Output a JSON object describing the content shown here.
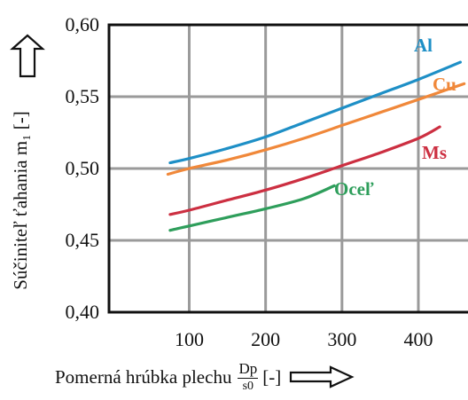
{
  "chart_data": {
    "type": "line",
    "ylabel": "Súčiniteľ ťahania m₁ [-]",
    "xlabel": {
      "text": "Pomerná hrúbka plechu",
      "fraction_numerator": "Dp",
      "fraction_denominator": "s0",
      "unit": "[-]"
    },
    "xlim": [
      -5,
      465
    ],
    "ylim": [
      0.4,
      0.6
    ],
    "x_ticks": [
      100,
      200,
      300,
      400
    ],
    "x_tick_labels": [
      "100",
      "200",
      "300",
      "400"
    ],
    "y_ticks": [
      0.4,
      0.45,
      0.5,
      0.55,
      0.6
    ],
    "y_tick_labels": [
      "0,40",
      "0,45",
      "0,50",
      "0,55",
      "0,60"
    ],
    "grid": true,
    "series": [
      {
        "name": "Al",
        "color": "#1e8fc6",
        "x": [
          75,
          100,
          150,
          200,
          250,
          300,
          350,
          400,
          455
        ],
        "y": [
          0.504,
          0.507,
          0.514,
          0.522,
          0.532,
          0.542,
          0.552,
          0.562,
          0.574
        ]
      },
      {
        "name": "Cu",
        "color": "#f0883a",
        "x": [
          72,
          100,
          150,
          200,
          250,
          300,
          350,
          400,
          460
        ],
        "y": [
          0.496,
          0.5,
          0.506,
          0.513,
          0.521,
          0.53,
          0.539,
          0.548,
          0.559
        ]
      },
      {
        "name": "Ms",
        "color": "#cc2f41",
        "x": [
          75,
          100,
          150,
          200,
          250,
          300,
          350,
          400,
          428
        ],
        "y": [
          0.468,
          0.471,
          0.478,
          0.485,
          0.493,
          0.502,
          0.511,
          0.521,
          0.529
        ]
      },
      {
        "name": "Oceľ",
        "color": "#2e9e5b",
        "x": [
          75,
          100,
          150,
          200,
          250,
          290
        ],
        "y": [
          0.457,
          0.46,
          0.466,
          0.472,
          0.479,
          0.488
        ]
      }
    ],
    "annotations": [
      "Al",
      "Cu",
      "Ms",
      "Oceľ"
    ]
  }
}
